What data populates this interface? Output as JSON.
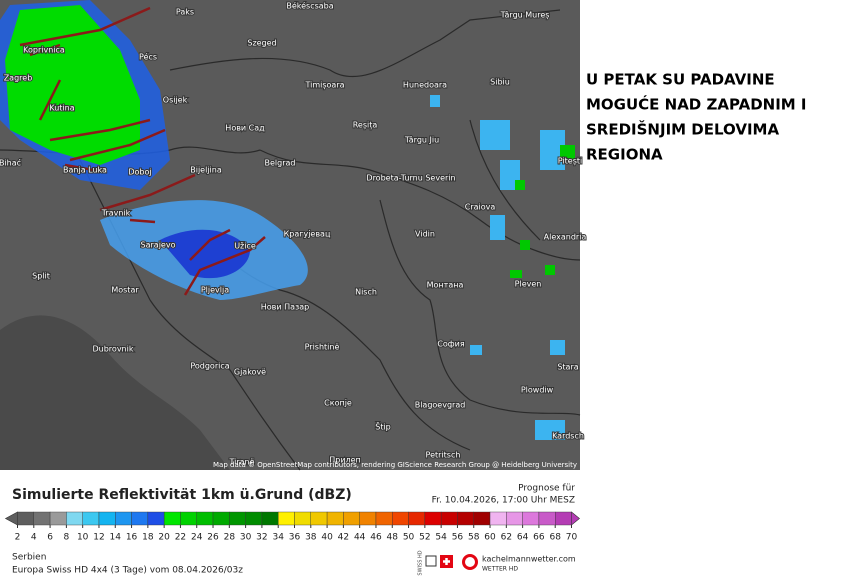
{
  "map": {
    "place_labels": [
      "Paks",
      "Békéscsaba",
      "Târgu Mureș",
      "Pécs",
      "Koprivnica",
      "Szeged",
      "Zagreb",
      "Timișoara",
      "Hunedoara",
      "Sibiu",
      "Kutina",
      "Osijek",
      "Нови Сад",
      "Reșița",
      "Târgu Jiu",
      "Pitești",
      "Bihać",
      "Banja Luka",
      "Doboj",
      "Bijeljina",
      "Belgrad",
      "Drobeta-Turnu Severin",
      "Craiova",
      "Travnik",
      "Sarajevo",
      "Užice",
      "Крагујевац",
      "Vidin",
      "Alexandria",
      "Split",
      "Mostar",
      "Pljevlja",
      "Нови Пазар",
      "Nisch",
      "Монтана",
      "Pleven",
      "Dubrovnik",
      "Prishtinë",
      "София",
      "Podgorica",
      "Gjakovë",
      "Stara",
      "Plowdiw",
      "Скопје",
      "Blagoevgrad",
      "Štip",
      "Kardsch",
      "Petritsch",
      "Tiranë",
      "Прилеп"
    ],
    "attribution": "Map data © OpenStreetMap contributors, rendering GIScience Research Group @ Heidelberg University"
  },
  "headline": [
    "U PETAK SU PADAVINE",
    "MOGUĆE NAD ZAPADNIM I",
    "SREDIŠNJIM DELOVIMA",
    "REGIONA"
  ],
  "legend": {
    "title": "Simulierte Reflektivität 1km ü.Grund (dBZ)",
    "forecast_label": "Prognose für",
    "forecast_time": "Fr. 10.04.2026, 17:00 Uhr MESZ",
    "ticks": [
      2,
      4,
      6,
      8,
      10,
      12,
      14,
      16,
      18,
      20,
      22,
      24,
      26,
      28,
      30,
      32,
      34,
      36,
      38,
      40,
      42,
      44,
      46,
      48,
      50,
      52,
      54,
      56,
      58,
      60,
      62,
      64,
      66,
      68,
      70
    ],
    "colors": [
      "#5e5e5e",
      "#727272",
      "#9a9a9a",
      "#7fd8f0",
      "#3cc8f0",
      "#14b4f0",
      "#1e96f0",
      "#1e78f0",
      "#1e4ee6",
      "#00e600",
      "#00d200",
      "#00be00",
      "#00aa00",
      "#009600",
      "#008c00",
      "#007800",
      "#fff000",
      "#f0dc00",
      "#f0c800",
      "#f0b400",
      "#f0a000",
      "#f08200",
      "#f06400",
      "#f04600",
      "#e62800",
      "#dc0000",
      "#c80000",
      "#b40000",
      "#a00000",
      "#f0b4f0",
      "#e696e6",
      "#dc78dc",
      "#c85ac8",
      "#b43cb4"
    ]
  },
  "footer": {
    "region": "Serbien",
    "model": "Europa Swiss HD 4x4 (3 Tage) vom 08.04.2026/03z",
    "brand": "kachelmannwetter.com",
    "brand_sub": "WETTER HD",
    "badge": "SWISS HD"
  }
}
